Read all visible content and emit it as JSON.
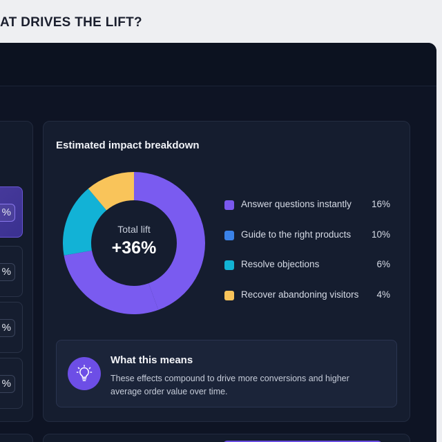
{
  "page": {
    "heading": "HAT DRIVES THE LIFT?"
  },
  "left_panel": {
    "rows": [
      {
        "value": "%",
        "active": true
      },
      {
        "value": "%",
        "active": false
      },
      {
        "value": "%",
        "active": false
      },
      {
        "value": "%",
        "active": false
      }
    ]
  },
  "impact": {
    "title": "Estimated impact breakdown",
    "total_label": "Total lift",
    "total_value": "+36%",
    "chart_data": {
      "type": "pie",
      "title": "",
      "categories": [
        "Answer questions instantly",
        "Guide to the right products",
        "Resolve objections",
        "Recover abandoning visitors"
      ],
      "values": [
        16,
        10,
        6,
        4
      ],
      "colors": [
        "#7a58ee",
        "#3a82e8",
        "#12b3d4",
        "#f9c45a"
      ],
      "display_colors": [
        "#7a5bf0",
        "#7a5bf0",
        "#12b2d6",
        "#f9c45a"
      ],
      "legend_placement": "right"
    },
    "legend": [
      {
        "label": "Answer questions instantly",
        "pct": "16%",
        "color": "#7a58ee"
      },
      {
        "label": "Guide to the right products",
        "pct": "10%",
        "color": "#3a82e8"
      },
      {
        "label": "Resolve objections",
        "pct": "6%",
        "color": "#12b3d4"
      },
      {
        "label": "Recover abandoning visitors",
        "pct": "4%",
        "color": "#f9c45a"
      }
    ]
  },
  "means": {
    "icon": "lightbulb-icon",
    "title": "What this means",
    "text": "These effects compound to drive more conversions and higher average order value over time."
  },
  "colors": {
    "accent": "#6d4ee6",
    "background": "#0e1424",
    "card": "#151d2f"
  }
}
